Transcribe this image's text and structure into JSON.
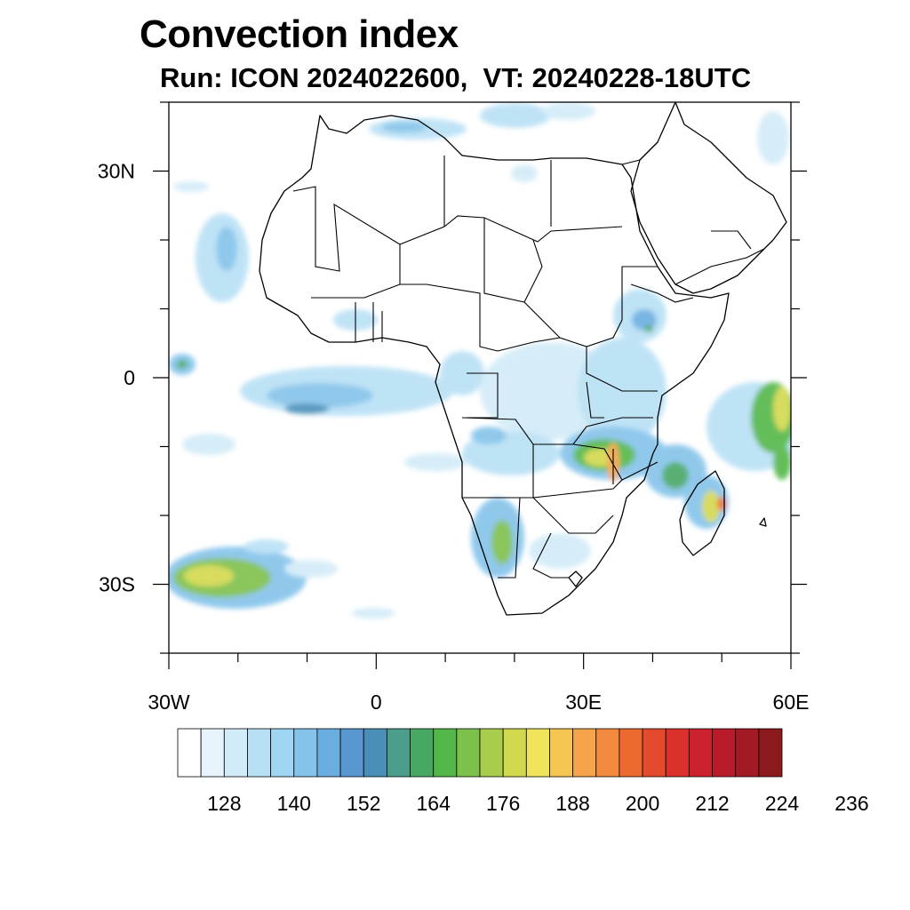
{
  "title": "Convection index",
  "subtitle": "Run: ICON 2024022600,  VT: 20240228-18UTC",
  "map": {
    "projection": "cylindrical equidistant",
    "lon_range": [
      -30,
      60
    ],
    "lat_range": [
      -40,
      40
    ],
    "lat_ticks": [
      {
        "value": 30,
        "label": "30N"
      },
      {
        "value": 0,
        "label": "0"
      },
      {
        "value": -30,
        "label": "30S"
      }
    ],
    "lon_ticks": [
      {
        "value": -30,
        "label": "30W"
      },
      {
        "value": 0,
        "label": "0"
      },
      {
        "value": 30,
        "label": "30E"
      },
      {
        "value": 60,
        "label": "60E"
      }
    ]
  },
  "colorbar": {
    "labels": [
      "128",
      "140",
      "152",
      "164",
      "176",
      "188",
      "200",
      "212",
      "224",
      "236"
    ],
    "colors": [
      "#ffffff",
      "#e8f4fc",
      "#d2ebf8",
      "#b8e0f5",
      "#9fd5f2",
      "#84c3ea",
      "#6aaee0",
      "#5897cf",
      "#4a8fb8",
      "#4b9e8c",
      "#47a864",
      "#52b748",
      "#7ec04c",
      "#a8cc4c",
      "#d3d94e",
      "#f0e45a",
      "#f6c652",
      "#f4a44a",
      "#f18a3e",
      "#ec6a30",
      "#e44b2c",
      "#da312c",
      "#cc2230",
      "#b81b2c",
      "#a41a24",
      "#8c1a1c"
    ]
  }
}
